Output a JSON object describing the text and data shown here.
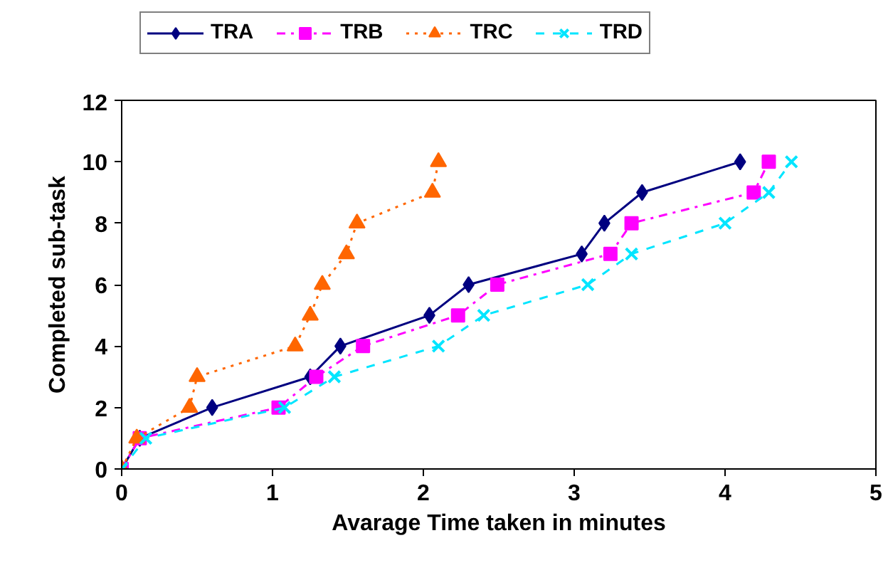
{
  "chart_data": {
    "type": "line",
    "xlabel": "Avarage Time taken in minutes",
    "ylabel": "Completed sub-task",
    "xlim": [
      0,
      5
    ],
    "xticks": [
      0,
      1,
      2,
      3,
      4,
      5
    ],
    "ylim": [
      0,
      12
    ],
    "yticks": [
      0,
      2,
      4,
      6,
      8,
      10,
      12
    ],
    "grid": false,
    "legend": "top",
    "series": [
      {
        "name": "TRA",
        "color": "#000080",
        "marker": "diamond",
        "line_style": "solid",
        "x": [
          0,
          0.12,
          0.6,
          1.25,
          1.45,
          2.04,
          2.3,
          3.05,
          3.2,
          3.45,
          4.1
        ],
        "values": [
          0,
          1,
          2,
          3,
          4,
          5,
          6,
          7,
          8,
          9,
          10
        ]
      },
      {
        "name": "TRB",
        "color": "#ff00ff",
        "marker": "square",
        "line_style": "dashdot",
        "x": [
          0,
          0.12,
          1.04,
          1.29,
          1.6,
          2.23,
          2.49,
          3.24,
          3.38,
          4.19,
          4.29
        ],
        "values": [
          0,
          1,
          2,
          3,
          4,
          5,
          6,
          7,
          8,
          9,
          10
        ]
      },
      {
        "name": "TRC",
        "color": "#ff6600",
        "marker": "triangle",
        "line_style": "dotted",
        "x": [
          0,
          0.1,
          0.45,
          0.5,
          1.15,
          1.25,
          1.33,
          1.49,
          1.56,
          2.06,
          2.1
        ],
        "values": [
          0,
          1,
          2,
          3,
          4,
          5,
          6,
          7,
          8,
          9,
          10
        ]
      },
      {
        "name": "TRD",
        "color": "#00e5ff",
        "marker": "cross",
        "line_style": "dashed",
        "x": [
          0,
          0.16,
          1.08,
          1.41,
          2.1,
          2.4,
          3.09,
          3.38,
          4.0,
          4.29,
          4.44
        ],
        "values": [
          0,
          1,
          2,
          3,
          4,
          5,
          6,
          7,
          8,
          9,
          10
        ]
      }
    ]
  }
}
